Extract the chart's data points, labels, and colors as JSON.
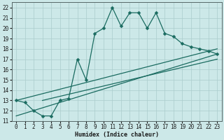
{
  "xlabel": "Humidex (Indice chaleur)",
  "xlim": [
    -0.5,
    23.5
  ],
  "ylim": [
    11,
    22.5
  ],
  "yticks": [
    11,
    12,
    13,
    14,
    15,
    16,
    17,
    18,
    19,
    20,
    21,
    22
  ],
  "xticks": [
    0,
    1,
    2,
    3,
    4,
    5,
    6,
    7,
    8,
    9,
    10,
    11,
    12,
    13,
    14,
    15,
    16,
    17,
    18,
    19,
    20,
    21,
    22,
    23
  ],
  "bg_color": "#cce8e8",
  "line_color": "#1a6b60",
  "grid_color": "#aacccc",
  "line1_x": [
    0,
    1,
    2,
    3,
    4,
    5,
    6,
    7,
    8,
    9,
    10,
    11,
    12,
    13,
    14,
    15,
    16,
    17,
    18,
    19,
    20,
    21,
    22,
    23
  ],
  "line1_y": [
    13,
    12.8,
    12,
    11.5,
    11.5,
    13,
    13.2,
    17,
    15,
    19.5,
    20,
    22,
    20.2,
    21.5,
    21.5,
    20,
    21.5,
    19.5,
    19.2,
    18.5,
    18.2,
    18,
    17.8,
    17.5
  ],
  "line2_x": [
    0,
    23
  ],
  "line2_y": [
    13,
    18.0
  ],
  "line3_x": [
    0,
    23
  ],
  "line3_y": [
    11.5,
    17.5
  ],
  "line4_x": [
    3,
    23
  ],
  "line4_y": [
    13.0,
    17.0
  ],
  "markersize": 2.5,
  "linewidth": 0.9,
  "tick_fontsize": 5.5
}
